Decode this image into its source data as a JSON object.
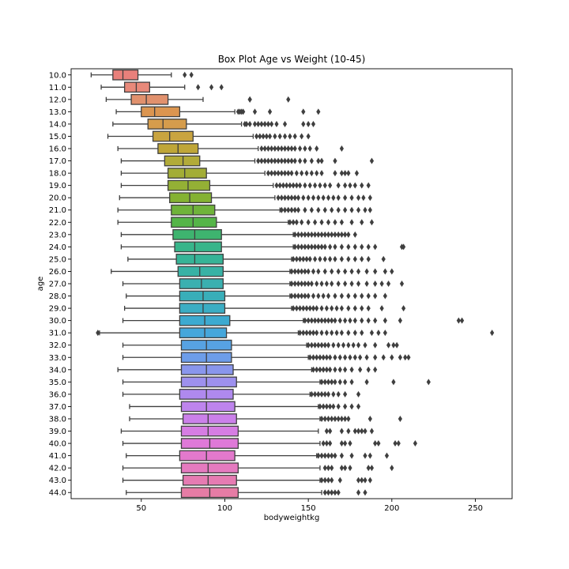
{
  "chart_data": {
    "type": "box",
    "title": "Box Plot Age vs Weight (10-45)",
    "xlabel": "bodyweightkg",
    "ylabel": "age",
    "xlim": [
      8,
      272
    ],
    "xticks": [
      50,
      100,
      150,
      200,
      250
    ],
    "orientation": "horizontal",
    "categories": [
      "10.0",
      "11.0",
      "12.0",
      "13.0",
      "14.0",
      "15.0",
      "16.0",
      "17.0",
      "18.0",
      "19.0",
      "20.0",
      "21.0",
      "22.0",
      "23.0",
      "24.0",
      "25.0",
      "26.0",
      "27.0",
      "28.0",
      "29.0",
      "30.0",
      "31.0",
      "32.0",
      "33.0",
      "34.0",
      "35.0",
      "36.0",
      "37.0",
      "38.0",
      "39.0",
      "40.0",
      "41.0",
      "42.0",
      "43.0",
      "44.0"
    ],
    "colors": [
      "#e8807b",
      "#e8897a",
      "#e1916d",
      "#db9550",
      "#d59c4c",
      "#c9a440",
      "#bfa638",
      "#b2ab39",
      "#a3ad36",
      "#94b035",
      "#84b232",
      "#6fb33a",
      "#55b548",
      "#3eb46f",
      "#37b58a",
      "#36b497",
      "#38b2a5",
      "#3ab0b0",
      "#39aeb9",
      "#3badc4",
      "#3daad0",
      "#46a7db",
      "#57a2e3",
      "#6d9de9",
      "#8996ec",
      "#9d90ee",
      "#af89ee",
      "#be84ed",
      "#cb80ea",
      "#d67de3",
      "#df79d8",
      "#e379cc",
      "#e57abf",
      "#e67bb2",
      "#e67ca5"
    ],
    "boxes": [
      {
        "whislo": 20,
        "q1": 33,
        "med": 39,
        "q3": 48,
        "whishi": 68,
        "fliers": [
          76,
          80
        ]
      },
      {
        "whislo": 26,
        "q1": 40,
        "med": 47,
        "q3": 55,
        "whishi": 76,
        "fliers": [
          84,
          92,
          98
        ]
      },
      {
        "whislo": 29,
        "q1": 44,
        "med": 53,
        "q3": 66,
        "whishi": 87,
        "fliers": [
          115,
          115,
          138
        ]
      },
      {
        "whislo": 35,
        "q1": 50,
        "med": 58,
        "q3": 73,
        "whishi": 106,
        "fliers": [
          108,
          109,
          110,
          111,
          118,
          127,
          147,
          156
        ]
      },
      {
        "whislo": 33,
        "q1": 54,
        "med": 63,
        "q3": 77,
        "whishi": 110,
        "fliers": [
          112,
          113,
          115,
          118,
          120,
          122,
          124,
          126,
          128,
          131,
          136,
          147,
          150,
          153
        ]
      },
      {
        "whislo": 30,
        "q1": 57,
        "med": 67,
        "q3": 81,
        "whishi": 117,
        "fliers": [
          119,
          121,
          123,
          125,
          127,
          130,
          133,
          136,
          139,
          142,
          146,
          150
        ]
      },
      {
        "whislo": 36,
        "q1": 60,
        "med": 72,
        "q3": 84,
        "whishi": 120,
        "fliers": [
          122,
          124,
          126,
          128,
          130,
          132,
          134,
          136,
          138,
          140,
          142,
          145,
          148,
          151,
          155,
          170
        ]
      },
      {
        "whislo": 38,
        "q1": 64,
        "med": 75,
        "q3": 85,
        "whishi": 118,
        "fliers": [
          120,
          122,
          124,
          126,
          128,
          130,
          132,
          134,
          136,
          138,
          140,
          142,
          145,
          148,
          152,
          156,
          158,
          166,
          188
        ]
      },
      {
        "whislo": 38,
        "q1": 66,
        "med": 76,
        "q3": 89,
        "whishi": 124,
        "fliers": [
          126,
          128,
          130,
          132,
          134,
          136,
          138,
          140,
          143,
          146,
          149,
          152,
          155,
          158,
          166,
          170,
          172,
          174,
          179
        ]
      },
      {
        "whislo": 38,
        "q1": 66,
        "med": 78,
        "q3": 91,
        "whishi": 129,
        "fliers": [
          131,
          133,
          135,
          137,
          139,
          141,
          143,
          145,
          148,
          151,
          154,
          157,
          160,
          163,
          168,
          172,
          175,
          178,
          182,
          186
        ]
      },
      {
        "whislo": 37,
        "q1": 67,
        "med": 79,
        "q3": 92,
        "whishi": 130,
        "fliers": [
          132,
          134,
          136,
          138,
          140,
          142,
          144,
          147,
          150,
          153,
          156,
          159,
          162,
          165,
          168,
          172,
          176,
          180,
          183,
          187
        ]
      },
      {
        "whislo": 36,
        "q1": 68,
        "med": 81,
        "q3": 94,
        "whishi": 133,
        "fliers": [
          134,
          136,
          138,
          140,
          142,
          144,
          148,
          152,
          156,
          160,
          164,
          168,
          172,
          176,
          180,
          184,
          187
        ]
      },
      {
        "whislo": 36,
        "q1": 68,
        "med": 81,
        "q3": 95,
        "whishi": 138,
        "fliers": [
          139,
          141,
          143,
          146,
          150,
          154,
          158,
          162,
          166,
          170,
          176,
          182,
          188
        ]
      },
      {
        "whislo": 38,
        "q1": 69,
        "med": 82,
        "q3": 98,
        "whishi": 141,
        "fliers": [
          142,
          144,
          146,
          148,
          150,
          152,
          154,
          156,
          158,
          160,
          162,
          164,
          166,
          168,
          170,
          172,
          174,
          178
        ]
      },
      {
        "whislo": 38,
        "q1": 70,
        "med": 82,
        "q3": 98,
        "whishi": 141,
        "fliers": [
          142,
          144,
          146,
          148,
          150,
          152,
          154,
          156,
          158,
          160,
          163,
          166,
          170,
          174,
          178,
          182,
          186,
          190,
          206,
          207
        ]
      },
      {
        "whislo": 42,
        "q1": 71,
        "med": 82,
        "q3": 99,
        "whishi": 140,
        "fliers": [
          141,
          143,
          145,
          147,
          149,
          151,
          154,
          157,
          160,
          163,
          166,
          170,
          174,
          178,
          182,
          186,
          195
        ]
      },
      {
        "whislo": 32,
        "q1": 72,
        "med": 85,
        "q3": 99,
        "whishi": 139,
        "fliers": [
          140,
          142,
          144,
          146,
          148,
          150,
          153,
          156,
          160,
          164,
          168,
          172,
          176,
          180,
          185,
          190,
          196,
          200
        ]
      },
      {
        "whislo": 39,
        "q1": 73,
        "med": 86,
        "q3": 99,
        "whishi": 139,
        "fliers": [
          140,
          142,
          144,
          146,
          148,
          150,
          152,
          155,
          158,
          161,
          164,
          168,
          172,
          176,
          180,
          185,
          190,
          194,
          198,
          206
        ]
      },
      {
        "whislo": 41,
        "q1": 73,
        "med": 87,
        "q3": 100,
        "whishi": 139,
        "fliers": [
          140,
          142,
          144,
          146,
          148,
          150,
          153,
          156,
          159,
          162,
          166,
          170,
          174,
          178,
          182,
          186,
          190,
          196
        ]
      },
      {
        "whislo": 40,
        "q1": 73,
        "med": 87,
        "q3": 100,
        "whishi": 140,
        "fliers": [
          141,
          143,
          145,
          147,
          149,
          151,
          153,
          155,
          158,
          161,
          164,
          167,
          170,
          174,
          178,
          182,
          186,
          194,
          207
        ]
      },
      {
        "whislo": 39,
        "q1": 73,
        "med": 88,
        "q3": 103,
        "whishi": 147,
        "fliers": [
          148,
          150,
          152,
          154,
          156,
          158,
          160,
          162,
          164,
          166,
          169,
          172,
          175,
          178,
          182,
          186,
          190,
          196,
          205,
          240,
          242
        ]
      },
      {
        "whislo": 25,
        "q1": 73,
        "med": 88,
        "q3": 101,
        "whishi": 144,
        "fliers": [
          24,
          145,
          147,
          149,
          151,
          153,
          155,
          158,
          161,
          164,
          167,
          170,
          174,
          178,
          182,
          188,
          192,
          196,
          260
        ]
      },
      {
        "whislo": 39,
        "q1": 74,
        "med": 89,
        "q3": 104,
        "whishi": 149,
        "fliers": [
          150,
          152,
          154,
          156,
          158,
          160,
          162,
          165,
          168,
          171,
          174,
          177,
          180,
          184,
          190,
          198,
          201,
          203
        ]
      },
      {
        "whislo": 39,
        "q1": 74,
        "med": 89,
        "q3": 104,
        "whishi": 150,
        "fliers": [
          151,
          153,
          155,
          157,
          159,
          161,
          163,
          166,
          169,
          172,
          175,
          178,
          181,
          185,
          190,
          195,
          200,
          205,
          208,
          210
        ]
      },
      {
        "whislo": 36,
        "q1": 74,
        "med": 89,
        "q3": 105,
        "whishi": 152,
        "fliers": [
          153,
          155,
          157,
          159,
          161,
          163,
          166,
          169,
          172,
          176,
          181,
          186,
          190
        ]
      },
      {
        "whislo": 39,
        "q1": 74,
        "med": 89,
        "q3": 107,
        "whishi": 157,
        "fliers": [
          158,
          160,
          162,
          164,
          166,
          169,
          172,
          176,
          185,
          201,
          222
        ]
      },
      {
        "whislo": 39,
        "q1": 73,
        "med": 89,
        "q3": 105,
        "whishi": 151,
        "fliers": [
          152,
          154,
          156,
          158,
          160,
          162,
          165,
          168,
          172,
          180
        ]
      },
      {
        "whislo": 43,
        "q1": 74,
        "med": 89,
        "q3": 106,
        "whishi": 156,
        "fliers": [
          157,
          159,
          161,
          163,
          165,
          168,
          172,
          176,
          180
        ]
      },
      {
        "whislo": 43,
        "q1": 75,
        "med": 90,
        "q3": 107,
        "whishi": 157,
        "fliers": [
          158,
          160,
          162,
          164,
          166,
          168,
          170,
          172,
          174,
          187,
          205
        ]
      },
      {
        "whislo": 38,
        "q1": 74,
        "med": 90,
        "q3": 108,
        "whishi": 156,
        "fliers": [
          161,
          163,
          170,
          174,
          178,
          180,
          182,
          184,
          188
        ]
      },
      {
        "whislo": 39,
        "q1": 74,
        "med": 91,
        "q3": 108,
        "whishi": 157,
        "fliers": [
          159,
          161,
          163,
          170,
          172,
          175,
          190,
          192,
          202,
          204,
          214
        ]
      },
      {
        "whislo": 41,
        "q1": 73,
        "med": 89,
        "q3": 106,
        "whishi": 155,
        "fliers": [
          156,
          158,
          160,
          162,
          164,
          166,
          170,
          176,
          184,
          187,
          197
        ]
      },
      {
        "whislo": 39,
        "q1": 74,
        "med": 90,
        "q3": 108,
        "whishi": 157,
        "fliers": [
          160,
          162,
          164,
          170,
          172,
          175,
          186,
          188,
          200
        ]
      },
      {
        "whislo": 39,
        "q1": 75,
        "med": 90,
        "q3": 107,
        "whishi": 157,
        "fliers": [
          158,
          160,
          162,
          164,
          169,
          180,
          182,
          184,
          187
        ]
      },
      {
        "whislo": 41,
        "q1": 74,
        "med": 91,
        "q3": 108,
        "whishi": 158,
        "fliers": [
          160,
          162,
          164,
          166,
          168,
          180,
          184
        ]
      }
    ]
  }
}
